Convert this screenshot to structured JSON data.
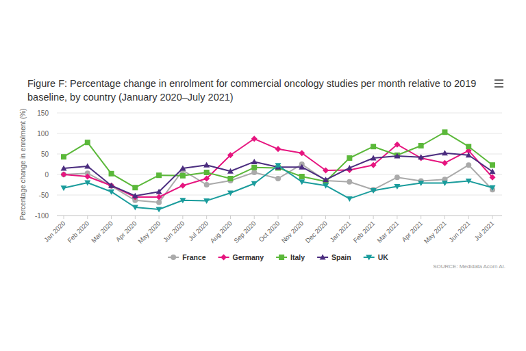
{
  "chart_data": {
    "type": "line",
    "title": "Figure F: Percentage change in enrolment for commercial oncology studies per month relative to 2019 baseline, by country (January 2020–July 2021)",
    "y_label": "Percentage change in enrolment (%)",
    "source": "SOURCE: Medidata Acorn AI.",
    "categories": [
      "Jan 2020",
      "Feb 2020",
      "Mar 2020",
      "Apr 2020",
      "May 2020",
      "Jun 2020",
      "Jul 2020",
      "Aug 2020",
      "Sep 2020",
      "Oct 2020",
      "Nov 2020",
      "Dec 2020",
      "Jan 2021",
      "Feb 2021",
      "Mar 2021",
      "Apr 2021",
      "May 2021",
      "Jun 2021",
      "Jul 2021"
    ],
    "series": [
      {
        "name": "France",
        "color": "#aaaaaa",
        "marker": "circle",
        "values": [
          0,
          3,
          -28,
          -63,
          -68,
          10,
          -25,
          -15,
          5,
          -10,
          25,
          -15,
          -18,
          -37,
          -7,
          -16,
          -12,
          23,
          -37
        ]
      },
      {
        "name": "Germany",
        "color": "#e6157f",
        "marker": "diamond",
        "values": [
          0,
          -5,
          -27,
          -55,
          -55,
          -27,
          -10,
          47,
          87,
          62,
          52,
          10,
          11,
          23,
          73,
          40,
          28,
          58,
          -7
        ]
      },
      {
        "name": "Italy",
        "color": "#5bb83a",
        "marker": "square",
        "values": [
          43,
          78,
          2,
          -32,
          -2,
          -3,
          5,
          -10,
          17,
          16,
          -5,
          -17,
          40,
          68,
          47,
          70,
          103,
          68,
          23
        ]
      },
      {
        "name": "Spain",
        "color": "#4b2d7f",
        "marker": "triangle",
        "values": [
          15,
          20,
          -27,
          -52,
          -42,
          15,
          23,
          8,
          31,
          18,
          18,
          -13,
          16,
          40,
          45,
          42,
          52,
          47,
          7
        ]
      },
      {
        "name": "UK",
        "color": "#1a9c9c",
        "marker": "triangle-down",
        "values": [
          -33,
          -20,
          -42,
          -80,
          -85,
          -63,
          -64,
          -45,
          -22,
          22,
          -18,
          -27,
          -59,
          -39,
          -29,
          -21,
          -21,
          -16,
          -32
        ]
      }
    ],
    "ylim": [
      -100,
      150
    ],
    "yticks": [
      -100,
      -50,
      0,
      50,
      100,
      150
    ],
    "grid": true,
    "legend": "bottom"
  }
}
